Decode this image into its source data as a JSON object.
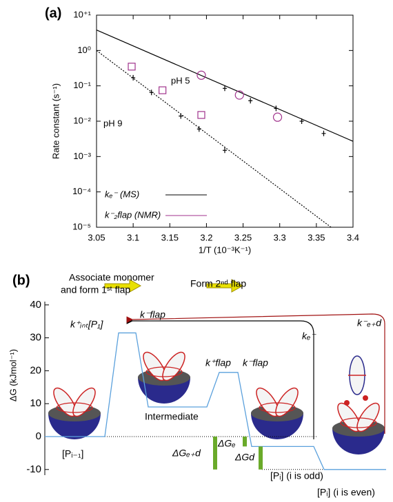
{
  "chart_data": [
    {
      "type": "scatter",
      "panel": "(a)",
      "ylabel": "Rate constant (s⁻¹)",
      "xlabel": "1/T (10⁻³K⁻¹)",
      "xlim": [
        3.05,
        3.4
      ],
      "xticks": [
        3.05,
        3.1,
        3.15,
        3.2,
        3.25,
        3.3,
        3.35,
        3.4
      ],
      "ylim": [
        1e-05,
        10
      ],
      "log_y": true,
      "yticks": [
        {
          "value": 1e-05,
          "label": "10⁻⁵"
        },
        {
          "value": 0.0001,
          "label": "10⁻⁴"
        },
        {
          "value": 0.001,
          "label": "10⁻³"
        },
        {
          "value": 0.01,
          "label": "10⁻²"
        },
        {
          "value": 0.1,
          "label": "10⁻¹"
        },
        {
          "value": 1,
          "label": "10⁰"
        },
        {
          "value": 10,
          "label": "10⁺¹"
        }
      ],
      "series": [
        {
          "name": "kₑ⁻ (MS)",
          "color": "#000000",
          "marker": "dash",
          "x": [
            3.1,
            3.125,
            3.165,
            3.19,
            3.225,
            3.225,
            3.26,
            3.295,
            3.33,
            3.36
          ],
          "values": [
            0.17,
            0.065,
            0.014,
            0.006,
            0.0015,
            0.085,
            0.038,
            0.023,
            0.01,
            0.0045
          ]
        },
        {
          "name": "k⁻₂flap (NMR)",
          "color": "#a0328c",
          "marker": [
            "square",
            "square",
            "square",
            "circle",
            "circle",
            "circle"
          ],
          "x": [
            3.098,
            3.14,
            3.193,
            3.193,
            3.245,
            3.297
          ],
          "values": [
            0.35,
            0.075,
            0.015,
            0.2,
            0.055,
            0.013
          ]
        }
      ],
      "lines": [
        {
          "color": "#000000",
          "dash": "solid",
          "x": [
            3.05,
            3.4
          ],
          "values": [
            3.8,
            0.0027
          ]
        },
        {
          "color": "#000000",
          "dash": "dotted",
          "x": [
            3.05,
            3.37
          ],
          "values": [
            1.0,
            1e-05
          ]
        }
      ],
      "annotations": [
        "pH 5",
        "pH 9"
      ],
      "legend": "lower left"
    },
    {
      "type": "line",
      "panel": "(b)",
      "ylabel": "ΔG (kJmol⁻¹)",
      "ylim": [
        -12,
        40
      ],
      "yticks": [
        -10,
        0,
        10,
        20,
        30,
        40
      ],
      "color": "#5aa0dc",
      "values": [
        0,
        31.5,
        9,
        19.5,
        -3,
        -10
      ],
      "steps": [
        "Associate monomer",
        "and form 1ˢᵗ flap",
        "Form 2ⁿᵈ flap"
      ],
      "rate_labels": [
        "k⁺ᵢₙₜ[P₁]",
        "k⁻flap",
        "k⁺flap",
        "k⁻flap",
        "kₑ⁻",
        "k⁻ₑ₊d"
      ],
      "state_labels": [
        "[Pᵢ₋₁]",
        "Intermediate",
        "[Pᵢ] (i is odd)",
        "[Pᵢ] (i is even)"
      ],
      "differences": [
        {
          "label": "ΔGₑ₊d",
          "from": 0,
          "to": -10
        },
        {
          "label": "ΔGₑ",
          "from": 0,
          "to": -3
        },
        {
          "label": "ΔGd",
          "from": -3,
          "to": -10
        }
      ],
      "difference_color": "#6aaa2a"
    }
  ]
}
